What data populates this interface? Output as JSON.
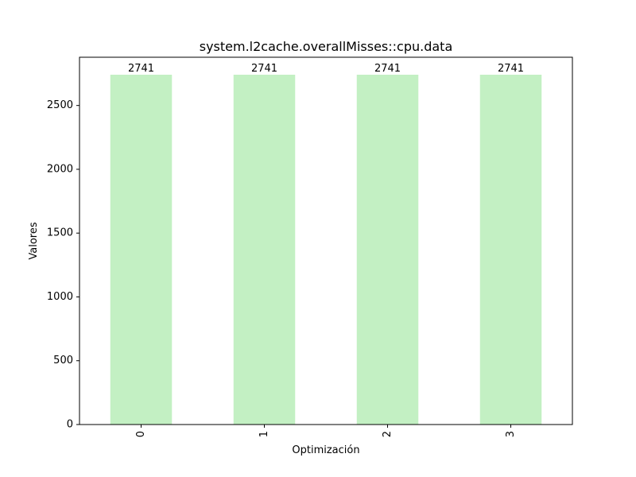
{
  "chart_data": {
    "type": "bar",
    "title": "system.l2cache.overallMisses::cpu.data",
    "xlabel": "Optimización",
    "ylabel": "Valores",
    "categories": [
      "0",
      "1",
      "2",
      "3"
    ],
    "values": [
      2741,
      2741,
      2741,
      2741
    ],
    "data_labels": [
      "2741",
      "2741",
      "2741",
      "2741"
    ],
    "ylim": [
      0,
      2878
    ],
    "yticks": [
      0,
      500,
      1000,
      1500,
      2000,
      2500
    ],
    "ytick_labels": [
      "0",
      "500",
      "1000",
      "1500",
      "2000",
      "2500"
    ],
    "bar_color": "#c3f0c3",
    "grid": false,
    "legend": "none"
  }
}
